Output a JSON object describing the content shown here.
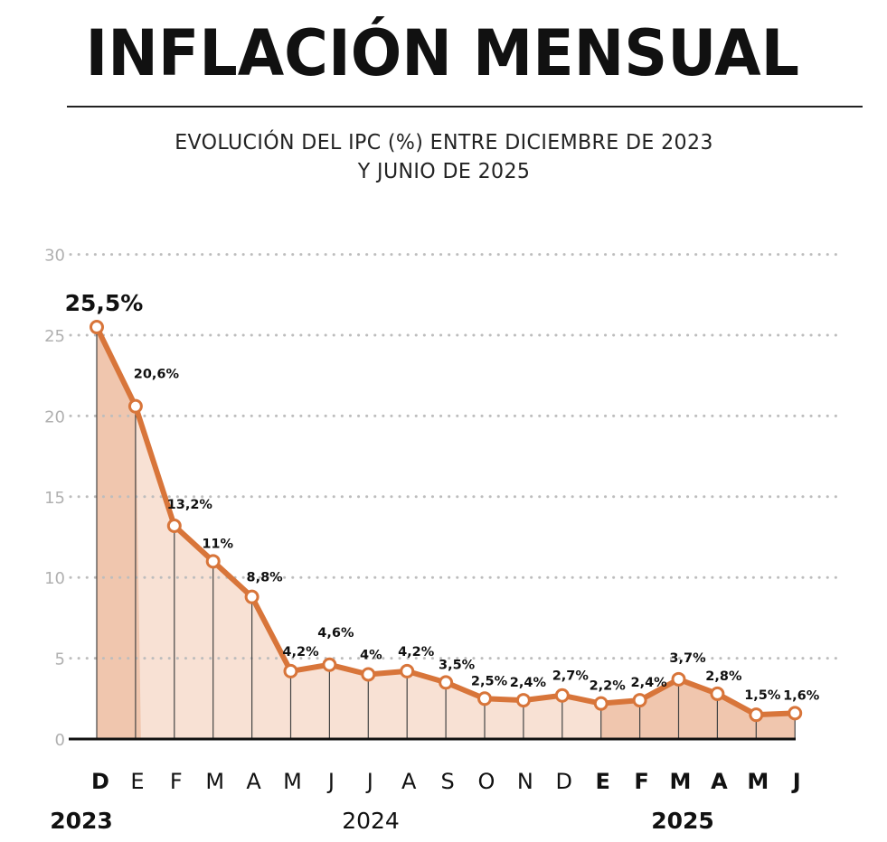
{
  "title": "INFLACIÓN MENSUAL",
  "subtitle_line1": "EVOLUCIÓN DEL IPC (%) ENTRE DICIEMBRE DE 2023",
  "subtitle_line2": "Y JUNIO DE 2025",
  "colors": {
    "line": "#d8753a",
    "fill_light": "#f8e1d4",
    "fill_dark": "#f0c6ae",
    "grid": "#bdbdbd",
    "text": "#111111",
    "axis_tick": "#b0b0b0"
  },
  "chart_data": {
    "type": "line",
    "title": "INFLACIÓN MENSUAL",
    "subtitle": "EVOLUCIÓN DEL IPC (%) ENTRE DICIEMBRE DE 2023 Y JUNIO DE 2025",
    "ylim": [
      0,
      30
    ],
    "yticks": [
      0,
      5,
      10,
      15,
      20,
      25,
      30
    ],
    "grid": true,
    "categories": [
      "D",
      "E",
      "F",
      "M",
      "A",
      "M",
      "J",
      "J",
      "A",
      "S",
      "O",
      "N",
      "D",
      "E",
      "F",
      "M",
      "A",
      "M",
      "J"
    ],
    "bold_categories": [
      true,
      false,
      false,
      false,
      false,
      false,
      false,
      false,
      false,
      false,
      false,
      false,
      false,
      true,
      true,
      true,
      true,
      true,
      true
    ],
    "values": [
      25.5,
      20.6,
      13.2,
      11,
      8.8,
      4.2,
      4.6,
      4,
      4.2,
      3.5,
      2.5,
      2.4,
      2.7,
      2.2,
      2.4,
      3.7,
      2.8,
      1.5,
      1.6
    ],
    "data_labels": [
      "25,5%",
      "20,6%",
      "13,2%",
      "11%",
      "8,8%",
      "4,2%",
      "4,6%",
      "4%",
      "4,2%",
      "3,5%",
      "2,5%",
      "2,4%",
      "2,7%",
      "2,2%",
      "2,4%",
      "3,7%",
      "2,8%",
      "1,5%",
      "1,6%"
    ],
    "year_labels": [
      {
        "text": "2023",
        "bold": true
      },
      {
        "text": "2024",
        "bold": false
      },
      {
        "text": "2025",
        "bold": true
      }
    ]
  }
}
